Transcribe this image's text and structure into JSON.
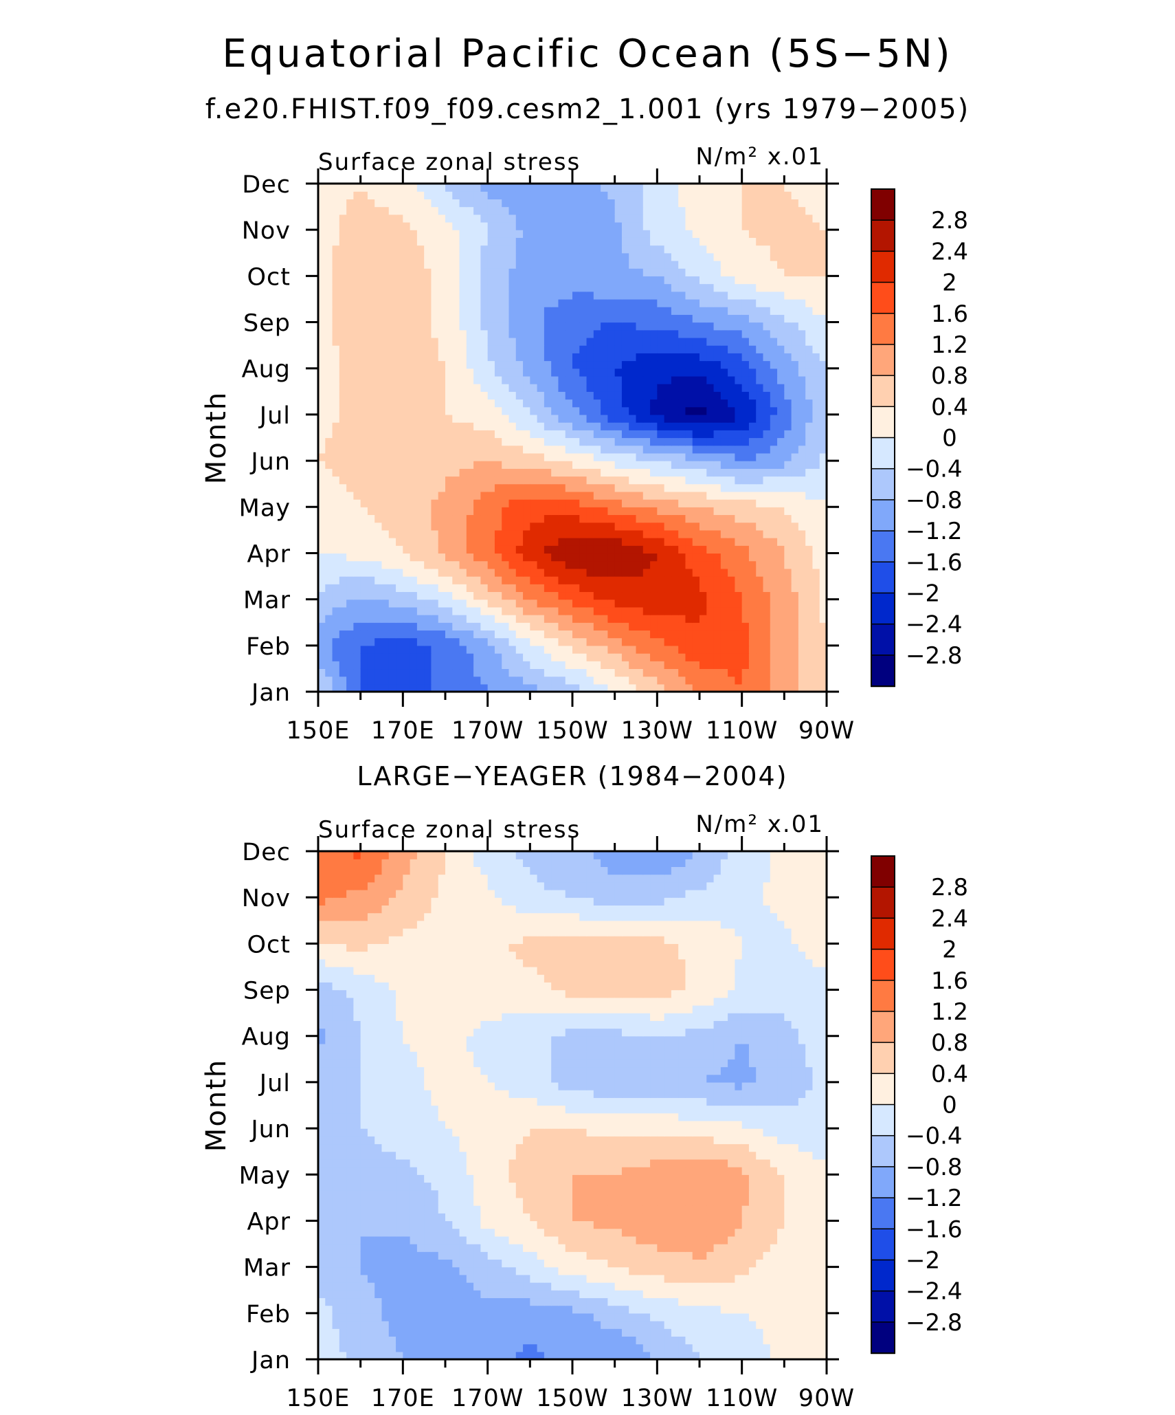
{
  "figure": {
    "title": "Equatorial Pacific Ocean (5S−5N)",
    "subtitle": "f.e20.FHIST.f09_f09.cesm2_1.001 (yrs 1979−2005)"
  },
  "colorbar": {
    "colors": [
      "#00007f",
      "#0010a8",
      "#0028cc",
      "#1f4ee8",
      "#4a78f2",
      "#80a8fa",
      "#adc8fc",
      "#d6e8ff",
      "#fff0e0",
      "#ffd0b0",
      "#ffa67a",
      "#ff7a42",
      "#ff4d1a",
      "#e02a00",
      "#b31500",
      "#800000"
    ],
    "labels": [
      "2.8",
      "2.4",
      "2",
      "1.6",
      "1.2",
      "0.8",
      "0.4",
      "0",
      "−0.4",
      "−0.8",
      "−1.2",
      "−1.6",
      "−2",
      "−2.4",
      "−2.8"
    ]
  },
  "chart_data": [
    {
      "type": "heatmap",
      "panel_title": "",
      "left_label": "Surface zonal stress",
      "right_label": "N/m² x.01",
      "ylabel": "Month",
      "xticks": [
        "150E",
        "170E",
        "170W",
        "150W",
        "130W",
        "110W",
        "90W"
      ],
      "yticks": [
        "Jan",
        "Feb",
        "Mar",
        "Apr",
        "May",
        "Jun",
        "Jul",
        "Aug",
        "Sep",
        "Oct",
        "Nov",
        "Dec"
      ],
      "xlim": [
        150,
        270
      ],
      "months": [
        "Jan",
        "Feb",
        "Mar",
        "Apr",
        "May",
        "Jun",
        "Jul",
        "Aug",
        "Sep",
        "Oct",
        "Nov",
        "Dec"
      ],
      "lons": [
        150,
        160,
        170,
        180,
        190,
        200,
        210,
        220,
        230,
        240,
        250,
        260,
        270
      ],
      "values": [
        [
          -0.3,
          -1.7,
          -1.6,
          -1.6,
          -1.2,
          -0.9,
          -0.6,
          0.0,
          0.6,
          1.2,
          1.6,
          1.0,
          0.4
        ],
        [
          -1.1,
          -1.6,
          -1.8,
          -1.5,
          -0.9,
          -0.1,
          0.5,
          1.0,
          1.5,
          1.9,
          1.7,
          1.0,
          0.4
        ],
        [
          -0.5,
          -0.9,
          -0.6,
          -0.2,
          0.5,
          1.2,
          1.7,
          2.1,
          2.3,
          2.1,
          1.6,
          1.0,
          0.3
        ],
        [
          0.0,
          0.1,
          0.4,
          0.9,
          1.5,
          2.2,
          2.8,
          2.8,
          2.4,
          1.8,
          1.3,
          0.8,
          0.2
        ],
        [
          0.2,
          0.4,
          0.6,
          0.9,
          1.4,
          1.9,
          1.8,
          1.4,
          1.1,
          0.8,
          0.6,
          0.4,
          0.0
        ],
        [
          0.4,
          0.6,
          0.6,
          0.7,
          0.8,
          0.6,
          0.3,
          -0.1,
          -0.4,
          -0.7,
          -1.2,
          -0.9,
          -0.3
        ],
        [
          0.3,
          0.5,
          0.5,
          0.4,
          0.2,
          -0.4,
          -1.1,
          -1.8,
          -2.5,
          -3.0,
          -2.4,
          -1.4,
          -0.5
        ],
        [
          0.2,
          0.6,
          0.6,
          0.4,
          -0.3,
          -0.9,
          -1.6,
          -2.0,
          -2.3,
          -2.3,
          -1.8,
          -1.0,
          -0.4
        ],
        [
          0.3,
          0.6,
          0.6,
          0.3,
          -0.5,
          -1.1,
          -1.5,
          -1.6,
          -1.5,
          -1.2,
          -1.0,
          -0.5,
          0.0
        ],
        [
          0.3,
          0.6,
          0.6,
          0.3,
          -0.6,
          -1.0,
          -1.0,
          -0.9,
          -0.8,
          -0.3,
          0.2,
          0.4,
          0.4
        ],
        [
          0.3,
          0.5,
          0.5,
          0.2,
          -0.4,
          -0.9,
          -1.0,
          -0.9,
          -0.2,
          0.1,
          0.4,
          0.5,
          0.4
        ],
        [
          0.3,
          0.4,
          0.2,
          -0.5,
          -0.9,
          -1.2,
          -1.0,
          -0.7,
          -0.2,
          0.2,
          0.4,
          0.4,
          0.3
        ]
      ]
    },
    {
      "type": "heatmap",
      "panel_title": "LARGE−YEAGER (1984−2004)",
      "left_label": "Surface zonal stress",
      "right_label": "N/m² x.01",
      "ylabel": "Month",
      "xticks": [
        "150E",
        "170E",
        "170W",
        "150W",
        "130W",
        "110W",
        "90W"
      ],
      "yticks": [
        "Jan",
        "Feb",
        "Mar",
        "Apr",
        "May",
        "Jun",
        "Jul",
        "Aug",
        "Sep",
        "Oct",
        "Nov",
        "Dec"
      ],
      "xlim": [
        150,
        270
      ],
      "months": [
        "Jan",
        "Feb",
        "Mar",
        "Apr",
        "May",
        "Jun",
        "Jul",
        "Aug",
        "Sep",
        "Oct",
        "Nov",
        "Dec"
      ],
      "lons": [
        150,
        160,
        170,
        180,
        190,
        200,
        210,
        220,
        230,
        240,
        250,
        260,
        270
      ],
      "values": [
        [
          -0.2,
          -0.5,
          -0.8,
          -0.9,
          -1.0,
          -1.3,
          -1.0,
          -1.2,
          -0.8,
          -0.4,
          -0.2,
          0.1,
          0.2
        ],
        [
          -0.3,
          -0.6,
          -1.0,
          -1.0,
          -0.9,
          -1.0,
          -0.9,
          -0.6,
          -0.3,
          -0.1,
          0.0,
          0.1,
          0.1
        ],
        [
          -0.5,
          -0.8,
          -1.0,
          -0.9,
          -0.6,
          -0.2,
          0.2,
          0.4,
          0.6,
          0.7,
          0.5,
          0.2,
          0.1
        ],
        [
          -0.5,
          -0.8,
          -0.7,
          -0.4,
          0.1,
          0.4,
          0.8,
          0.9,
          1.1,
          1.2,
          0.8,
          0.4,
          0.1
        ],
        [
          -0.4,
          -0.6,
          -0.5,
          -0.3,
          0.2,
          0.6,
          0.8,
          0.8,
          1.0,
          1.2,
          0.9,
          0.4,
          0.1
        ],
        [
          -0.4,
          -0.4,
          -0.2,
          0.0,
          0.2,
          0.4,
          0.4,
          0.3,
          0.3,
          0.2,
          0.1,
          -0.2,
          -0.3
        ],
        [
          -0.5,
          -0.4,
          -0.1,
          0.1,
          0.0,
          -0.2,
          -0.6,
          -0.7,
          -0.7,
          -0.8,
          -0.9,
          -0.6,
          -0.3
        ],
        [
          -0.9,
          -0.4,
          0.0,
          0.1,
          -0.1,
          -0.3,
          -0.5,
          -0.5,
          -0.4,
          -0.5,
          -0.8,
          -0.5,
          -0.2
        ],
        [
          -0.6,
          -0.3,
          0.1,
          0.2,
          0.2,
          0.3,
          0.5,
          0.5,
          0.6,
          0.3,
          -0.1,
          -0.3,
          -0.2
        ],
        [
          0.4,
          0.5,
          0.3,
          0.2,
          0.3,
          0.5,
          0.6,
          0.5,
          0.5,
          0.3,
          0.0,
          -0.1,
          0.3
        ],
        [
          1.3,
          1.1,
          0.7,
          0.3,
          0.1,
          -0.3,
          -0.4,
          -0.6,
          -0.5,
          -0.3,
          -0.1,
          0.1,
          0.3
        ],
        [
          1.4,
          1.7,
          1.0,
          0.4,
          -0.2,
          -0.5,
          -0.7,
          -1.0,
          -1.2,
          -0.8,
          -0.2,
          0.1,
          0.2
        ]
      ]
    }
  ]
}
